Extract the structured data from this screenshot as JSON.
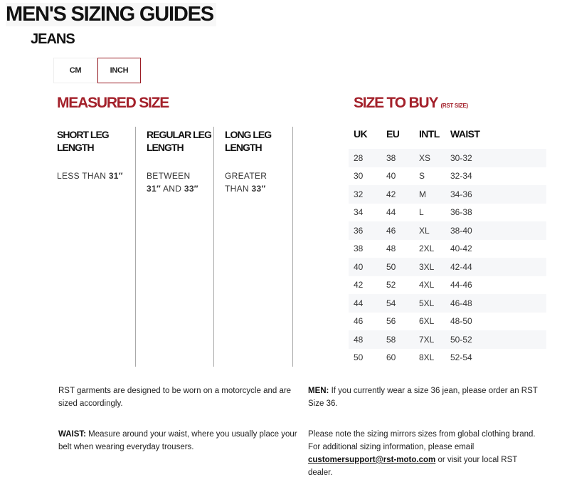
{
  "header": {
    "title": "MEN'S SIZING GUIDES",
    "subtitle": "JEANS"
  },
  "units": {
    "tabs": [
      {
        "label": "CM",
        "selected": false
      },
      {
        "label": "INCH",
        "selected": true
      }
    ],
    "accent": "#9b1c24"
  },
  "measured": {
    "title": "MEASURED SIZE",
    "columns": [
      {
        "h1": "SHORT LEG",
        "h2": "LENGTH",
        "v1": "LESS THAN ",
        "v1b": "31″",
        "v2": "",
        "v2b": ""
      },
      {
        "h1": "REGULAR LEG",
        "h2": "LENGTH",
        "v1": "BETWEEN",
        "v1b": "",
        "v2a": "31″",
        "v2": " AND ",
        "v2b": "33″"
      },
      {
        "h1": "LONG LEG",
        "h2": "LENGTH",
        "v1": "GREATER",
        "v1b": "",
        "v2": "THAN ",
        "v2b": "33″"
      }
    ]
  },
  "buy": {
    "title": "SIZE TO BUY",
    "note": "(RST SIZE)",
    "headers": [
      "UK",
      "EU",
      "INTL",
      "WAIST"
    ],
    "rows": [
      [
        "28",
        "38",
        "XS",
        "30-32"
      ],
      [
        "30",
        "40",
        "S",
        "32-34"
      ],
      [
        "32",
        "42",
        "M",
        "34-36"
      ],
      [
        "34",
        "44",
        "L",
        "36-38"
      ],
      [
        "36",
        "46",
        "XL",
        "38-40"
      ],
      [
        "38",
        "48",
        "2XL",
        "40-42"
      ],
      [
        "40",
        "50",
        "3XL",
        "42-44"
      ],
      [
        "42",
        "52",
        "4XL",
        "44-46"
      ],
      [
        "44",
        "54",
        "5XL",
        "46-48"
      ],
      [
        "46",
        "56",
        "6XL",
        "48-50"
      ],
      [
        "48",
        "58",
        "7XL",
        "50-52"
      ],
      [
        "50",
        "60",
        "8XL",
        "52-54"
      ]
    ]
  },
  "notes": {
    "n1": "RST garments are designed to be worn on a motorcycle and are sized accordingly.",
    "n2_label": "WAIST:",
    "n2": " Measure around your waist, where you usually place your belt when wearing everyday trousers.",
    "n3_label": "MEN:",
    "n3": " If you currently wear a size 36 jean, please order an RST Size 36.",
    "n4a": "Please note the sizing mirrors sizes from global clothing brand. For additional sizing information, please email ",
    "email": "customersupport@rst-moto.com",
    "n4b": " or visit your local RST dealer."
  },
  "colors": {
    "accent": "#a3202a",
    "row_shade": "#f6f7f9"
  }
}
